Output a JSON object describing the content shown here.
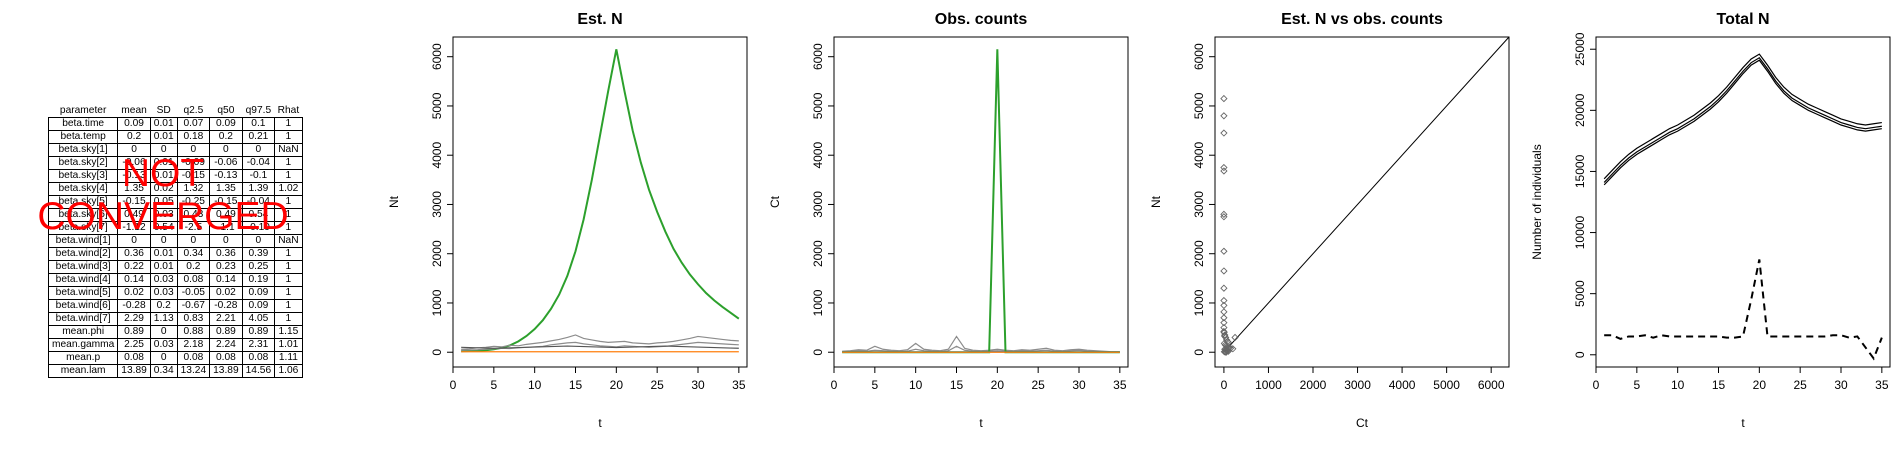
{
  "table": {
    "headers": [
      "parameter",
      "mean",
      "SD",
      "q2.5",
      "q50",
      "q97.5",
      "Rhat"
    ],
    "rows": [
      [
        "beta.time",
        "0.09",
        "0.01",
        "0.07",
        "0.09",
        "0.1",
        "1"
      ],
      [
        "beta.temp",
        "0.2",
        "0.01",
        "0.18",
        "0.2",
        "0.21",
        "1"
      ],
      [
        "beta.sky[1]",
        "0",
        "0",
        "0",
        "0",
        "0",
        "NaN"
      ],
      [
        "beta.sky[2]",
        "-0.06",
        "0.01",
        "-0.09",
        "-0.06",
        "-0.04",
        "1"
      ],
      [
        "beta.sky[3]",
        "-0.13",
        "0.01",
        "-0.15",
        "-0.13",
        "-0.1",
        "1"
      ],
      [
        "beta.sky[4]",
        "1.35",
        "0.02",
        "1.32",
        "1.35",
        "1.39",
        "1.02"
      ],
      [
        "beta.sky[5]",
        "-0.15",
        "0.05",
        "-0.25",
        "-0.15",
        "-0.04",
        "1"
      ],
      [
        "beta.sky[6]",
        "0.49",
        "0.03",
        "0.43",
        "0.49",
        "0.54",
        "1"
      ],
      [
        "beta.sky[7]",
        "-1.12",
        "0.54",
        "-2.5",
        "-1.1",
        "-0.19",
        "1"
      ],
      [
        "beta.wind[1]",
        "0",
        "0",
        "0",
        "0",
        "0",
        "NaN"
      ],
      [
        "beta.wind[2]",
        "0.36",
        "0.01",
        "0.34",
        "0.36",
        "0.39",
        "1"
      ],
      [
        "beta.wind[3]",
        "0.22",
        "0.01",
        "0.2",
        "0.23",
        "0.25",
        "1"
      ],
      [
        "beta.wind[4]",
        "0.14",
        "0.03",
        "0.08",
        "0.14",
        "0.19",
        "1"
      ],
      [
        "beta.wind[5]",
        "0.02",
        "0.03",
        "-0.05",
        "0.02",
        "0.09",
        "1"
      ],
      [
        "beta.wind[6]",
        "-0.28",
        "0.2",
        "-0.67",
        "-0.28",
        "0.09",
        "1"
      ],
      [
        "beta.wind[7]",
        "2.29",
        "1.13",
        "0.83",
        "2.21",
        "4.05",
        "1"
      ],
      [
        "mean.phi",
        "0.89",
        "0",
        "0.88",
        "0.89",
        "0.89",
        "1.15"
      ],
      [
        "mean.gamma",
        "2.25",
        "0.03",
        "2.18",
        "2.24",
        "2.31",
        "1.01"
      ],
      [
        "mean.p",
        "0.08",
        "0",
        "0.08",
        "0.08",
        "0.08",
        "1.11"
      ],
      [
        "mean.lam",
        "13.89",
        "0.34",
        "13.24",
        "13.89",
        "14.56",
        "1.06"
      ]
    ],
    "overlay_lines": [
      "NOT",
      "CONVERGED"
    ],
    "overlay_color": "#ff0000"
  },
  "chart_data": [
    {
      "type": "line",
      "title": "Est. N",
      "xlabel": "t",
      "ylabel": "Nt",
      "xlim": [
        0,
        36
      ],
      "ylim": [
        -300,
        6400
      ],
      "x_ticks": [
        0,
        5,
        10,
        15,
        20,
        25,
        30,
        35
      ],
      "y_ticks": [
        0,
        1000,
        2000,
        3000,
        4000,
        5000,
        6000
      ],
      "x": [
        1,
        2,
        3,
        4,
        5,
        6,
        7,
        8,
        9,
        10,
        11,
        12,
        13,
        14,
        15,
        16,
        17,
        18,
        19,
        20,
        21,
        22,
        23,
        24,
        25,
        26,
        27,
        28,
        29,
        30,
        31,
        32,
        33,
        34,
        35
      ],
      "series": [
        {
          "color": "#2ca02c",
          "values": [
            20,
            25,
            30,
            40,
            60,
            90,
            140,
            220,
            330,
            470,
            650,
            880,
            1170,
            1550,
            2050,
            2700,
            3500,
            4400,
            5300,
            6150,
            5300,
            4500,
            3850,
            3300,
            2850,
            2450,
            2100,
            1820,
            1580,
            1380,
            1200,
            1050,
            920,
            800,
            680
          ]
        },
        {
          "color": "#8c8c8c",
          "values": [
            60,
            70,
            90,
            100,
            120,
            110,
            140,
            130,
            160,
            180,
            200,
            230,
            260,
            300,
            350,
            280,
            250,
            220,
            200,
            210,
            220,
            190,
            180,
            170,
            190,
            200,
            220,
            250,
            280,
            320,
            300,
            280,
            260,
            240,
            230
          ]
        },
        {
          "color": "#8c8c8c",
          "values": [
            40,
            45,
            50,
            60,
            70,
            80,
            75,
            90,
            100,
            110,
            120,
            150,
            170,
            190,
            200,
            170,
            150,
            130,
            120,
            110,
            130,
            120,
            110,
            100,
            110,
            120,
            140,
            160,
            180,
            200,
            190,
            180,
            170,
            160,
            150
          ]
        },
        {
          "color": "#555555",
          "values": [
            100,
            95,
            90,
            85,
            80,
            85,
            90,
            95,
            100,
            105,
            110,
            115,
            120,
            125,
            120,
            115,
            110,
            105,
            100,
            95,
            100,
            105,
            110,
            115,
            120,
            125,
            120,
            115,
            110,
            105,
            100,
            95,
            90,
            85,
            80
          ]
        },
        {
          "color": "#ff7f0e",
          "values": [
            10,
            10,
            10,
            10,
            10,
            10,
            10,
            10,
            10,
            10,
            10,
            10,
            10,
            10,
            10,
            10,
            10,
            10,
            10,
            10,
            10,
            10,
            10,
            10,
            10,
            10,
            10,
            10,
            10,
            10,
            10,
            10,
            10,
            10,
            10
          ]
        }
      ]
    },
    {
      "type": "line",
      "title": "Obs. counts",
      "xlabel": "t",
      "ylabel": "Ct",
      "xlim": [
        0,
        36
      ],
      "ylim": [
        -300,
        6400
      ],
      "x_ticks": [
        0,
        5,
        10,
        15,
        20,
        25,
        30,
        35
      ],
      "y_ticks": [
        0,
        1000,
        2000,
        3000,
        4000,
        5000,
        6000
      ],
      "x": [
        1,
        2,
        3,
        4,
        5,
        6,
        7,
        8,
        9,
        10,
        11,
        12,
        13,
        14,
        15,
        16,
        17,
        18,
        19,
        20,
        21,
        22,
        23,
        24,
        25,
        26,
        27,
        28,
        29,
        30,
        31,
        32,
        33,
        34,
        35
      ],
      "series": [
        {
          "color": "#8c8c8c",
          "values": [
            20,
            30,
            50,
            40,
            120,
            60,
            40,
            30,
            50,
            180,
            60,
            40,
            30,
            60,
            320,
            80,
            40,
            30,
            40,
            60,
            40,
            30,
            50,
            40,
            60,
            80,
            40,
            30,
            50,
            60,
            40,
            30,
            20,
            10,
            10
          ]
        },
        {
          "color": "#8c8c8c",
          "values": [
            10,
            20,
            30,
            20,
            40,
            30,
            20,
            10,
            20,
            60,
            30,
            20,
            10,
            30,
            120,
            40,
            20,
            10,
            20,
            30,
            20,
            10,
            30,
            20,
            30,
            40,
            20,
            10,
            30,
            40,
            20,
            10,
            10,
            5,
            5
          ]
        },
        {
          "color": "#2ca02c",
          "values": [
            0,
            0,
            0,
            0,
            0,
            0,
            0,
            0,
            0,
            0,
            0,
            0,
            0,
            0,
            0,
            0,
            0,
            0,
            0,
            6150,
            0,
            0,
            0,
            0,
            0,
            0,
            0,
            0,
            0,
            0,
            0,
            0,
            0,
            0,
            0
          ]
        },
        {
          "color": "#1f77b4",
          "values": [
            5,
            5,
            5,
            5,
            5,
            5,
            5,
            5,
            5,
            5,
            5,
            5,
            5,
            5,
            5,
            5,
            5,
            5,
            5,
            5,
            5,
            5,
            5,
            5,
            5,
            5,
            5,
            5,
            5,
            5,
            5,
            5,
            5,
            5,
            5
          ]
        },
        {
          "color": "#ff7f0e",
          "values": [
            0,
            0,
            0,
            0,
            0,
            0,
            0,
            0,
            0,
            0,
            0,
            0,
            0,
            0,
            0,
            0,
            0,
            0,
            0,
            0,
            0,
            0,
            0,
            0,
            0,
            0,
            0,
            0,
            0,
            0,
            0,
            0,
            0,
            0,
            0
          ]
        }
      ]
    },
    {
      "type": "scatter",
      "title": "Est. N vs obs. counts",
      "xlabel": "Ct",
      "ylabel": "Nt",
      "xlim": [
        -200,
        6400
      ],
      "ylim": [
        -300,
        6400
      ],
      "x_ticks": [
        0,
        1000,
        2000,
        3000,
        4000,
        5000,
        6000
      ],
      "y_ticks": [
        0,
        1000,
        2000,
        3000,
        4000,
        5000,
        6000
      ],
      "point_color": "#666666",
      "reference_line": [
        [
          0,
          0
        ],
        [
          6400,
          6400
        ]
      ],
      "points": [
        [
          0,
          5150
        ],
        [
          0,
          4800
        ],
        [
          0,
          4450
        ],
        [
          0,
          3750
        ],
        [
          0,
          3680
        ],
        [
          0,
          2800
        ],
        [
          0,
          2750
        ],
        [
          0,
          2050
        ],
        [
          0,
          1650
        ],
        [
          0,
          1300
        ],
        [
          0,
          1050
        ],
        [
          0,
          950
        ],
        [
          0,
          820
        ],
        [
          0,
          700
        ],
        [
          0,
          600
        ],
        [
          0,
          500
        ],
        [
          0,
          420
        ],
        [
          20,
          350
        ],
        [
          40,
          300
        ],
        [
          60,
          250
        ],
        [
          80,
          220
        ],
        [
          100,
          200
        ],
        [
          10,
          180
        ],
        [
          30,
          150
        ],
        [
          50,
          130
        ],
        [
          70,
          110
        ],
        [
          90,
          100
        ],
        [
          120,
          90
        ],
        [
          150,
          80
        ],
        [
          200,
          70
        ],
        [
          250,
          300
        ],
        [
          20,
          60
        ],
        [
          40,
          50
        ],
        [
          60,
          40
        ],
        [
          80,
          30
        ],
        [
          100,
          20
        ],
        [
          10,
          10
        ],
        [
          30,
          5
        ],
        [
          50,
          0
        ],
        [
          5,
          400
        ],
        [
          15,
          330
        ]
      ]
    },
    {
      "type": "line",
      "title": "Total N",
      "xlabel": "t",
      "ylabel": "Number of individuals",
      "xlim": [
        0,
        36
      ],
      "ylim": [
        -1000,
        26000
      ],
      "x_ticks": [
        0,
        5,
        10,
        15,
        20,
        25,
        30,
        35
      ],
      "y_ticks": [
        0,
        5000,
        10000,
        15000,
        20000,
        25000
      ],
      "x": [
        1,
        2,
        3,
        4,
        5,
        6,
        7,
        8,
        9,
        10,
        11,
        12,
        13,
        14,
        15,
        16,
        17,
        18,
        19,
        20,
        21,
        22,
        23,
        24,
        25,
        26,
        27,
        28,
        29,
        30,
        31,
        32,
        33,
        34,
        35
      ],
      "series": [
        {
          "color": "#000000",
          "style": "solid",
          "values": [
            14100,
            14800,
            15500,
            16100,
            16600,
            17000,
            17400,
            17800,
            18200,
            18500,
            18900,
            19300,
            19800,
            20300,
            20900,
            21600,
            22400,
            23200,
            23900,
            24300,
            23400,
            22400,
            21600,
            21000,
            20600,
            20200,
            19900,
            19600,
            19300,
            19000,
            18800,
            18600,
            18500,
            18600,
            18700
          ]
        },
        {
          "color": "#000000",
          "style": "solid",
          "values": [
            14400,
            15100,
            15800,
            16400,
            16900,
            17300,
            17700,
            18100,
            18500,
            18800,
            19200,
            19600,
            20100,
            20600,
            21200,
            21900,
            22700,
            23500,
            24200,
            24600,
            23700,
            22700,
            21900,
            21300,
            20900,
            20500,
            20200,
            19900,
            19600,
            19300,
            19100,
            18900,
            18800,
            18900,
            19000
          ]
        },
        {
          "color": "#000000",
          "style": "solid",
          "values": [
            13900,
            14600,
            15300,
            15900,
            16400,
            16800,
            17200,
            17600,
            18000,
            18300,
            18700,
            19100,
            19600,
            20100,
            20700,
            21400,
            22200,
            23000,
            23700,
            24100,
            23200,
            22200,
            21400,
            20800,
            20400,
            20000,
            19700,
            19400,
            19100,
            18800,
            18600,
            18400,
            18300,
            18400,
            18500
          ]
        },
        {
          "color": "#000000",
          "style": "dashed",
          "values": [
            1600,
            1600,
            1300,
            1500,
            1500,
            1600,
            1400,
            1600,
            1500,
            1500,
            1500,
            1500,
            1500,
            1500,
            1500,
            1400,
            1400,
            1500,
            4500,
            7800,
            1500,
            1500,
            1500,
            1500,
            1500,
            1500,
            1500,
            1500,
            1600,
            1600,
            1400,
            1500,
            600,
            -300,
            1400
          ]
        }
      ]
    }
  ]
}
